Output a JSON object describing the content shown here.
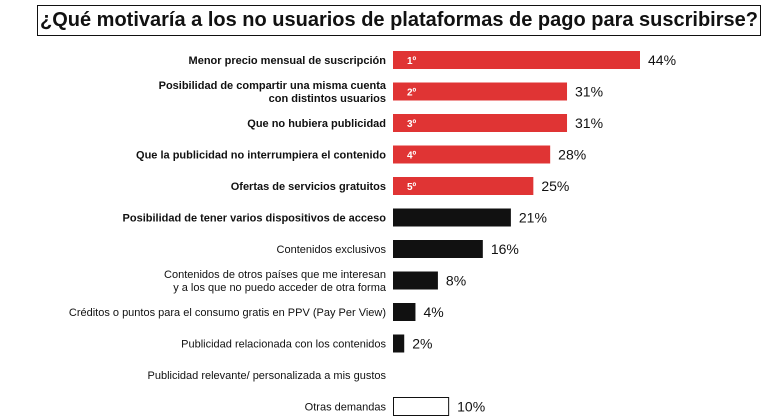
{
  "title": "¿Qué motivaría a los no usuarios de plataformas de pago para suscribirse?",
  "colors": {
    "top5": "#e03434",
    "other": "#111111",
    "outline": "#111111",
    "rank_text": "#ffffff"
  },
  "chart_data": {
    "type": "bar",
    "orientation": "horizontal",
    "title": "¿Qué motivaría a los no usuarios de plataformas de pago para suscribirse?",
    "unit": "%",
    "xlim": [
      0,
      44
    ],
    "grid": false,
    "categories": [
      [
        "Menor precio mensual de suscripción"
      ],
      [
        "Posibilidad de compartir una misma cuenta",
        "con distintos usuarios"
      ],
      [
        "Que no hubiera publicidad"
      ],
      [
        "Que la publicidad no interrumpiera el contenido"
      ],
      [
        "Ofertas de servicios gratuitos"
      ],
      [
        "Posibilidad de tener varios dispositivos de acceso"
      ],
      [
        "Contenidos exclusivos"
      ],
      [
        "Contenidos de otros países que me interesan",
        "y a los que no puedo acceder de otra forma"
      ],
      [
        "Créditos o puntos para el consumo gratis en PPV (Pay Per View)"
      ],
      [
        "Publicidad relacionada con los contenidos"
      ],
      [
        "Publicidad relevante/ personalizada a mis gustos"
      ],
      [
        "Otras demandas"
      ]
    ],
    "values": [
      44,
      31,
      31,
      28,
      25,
      21,
      16,
      8,
      4,
      2,
      null,
      10
    ],
    "value_labels": [
      "44%",
      "31%",
      "31%",
      "28%",
      "25%",
      "21%",
      "16%",
      "8%",
      "4%",
      "2%",
      "",
      "10%"
    ],
    "ranks": [
      "1º",
      "2º",
      "3º",
      "4º",
      "5º",
      "",
      "",
      "",
      "",
      "",
      "",
      ""
    ],
    "styles": [
      "top5",
      "top5",
      "top5",
      "top5",
      "top5",
      "other",
      "other",
      "other",
      "other",
      "other",
      "other",
      "outline"
    ],
    "bold_labels": [
      true,
      true,
      true,
      true,
      true,
      true,
      false,
      false,
      false,
      false,
      false,
      false
    ]
  }
}
